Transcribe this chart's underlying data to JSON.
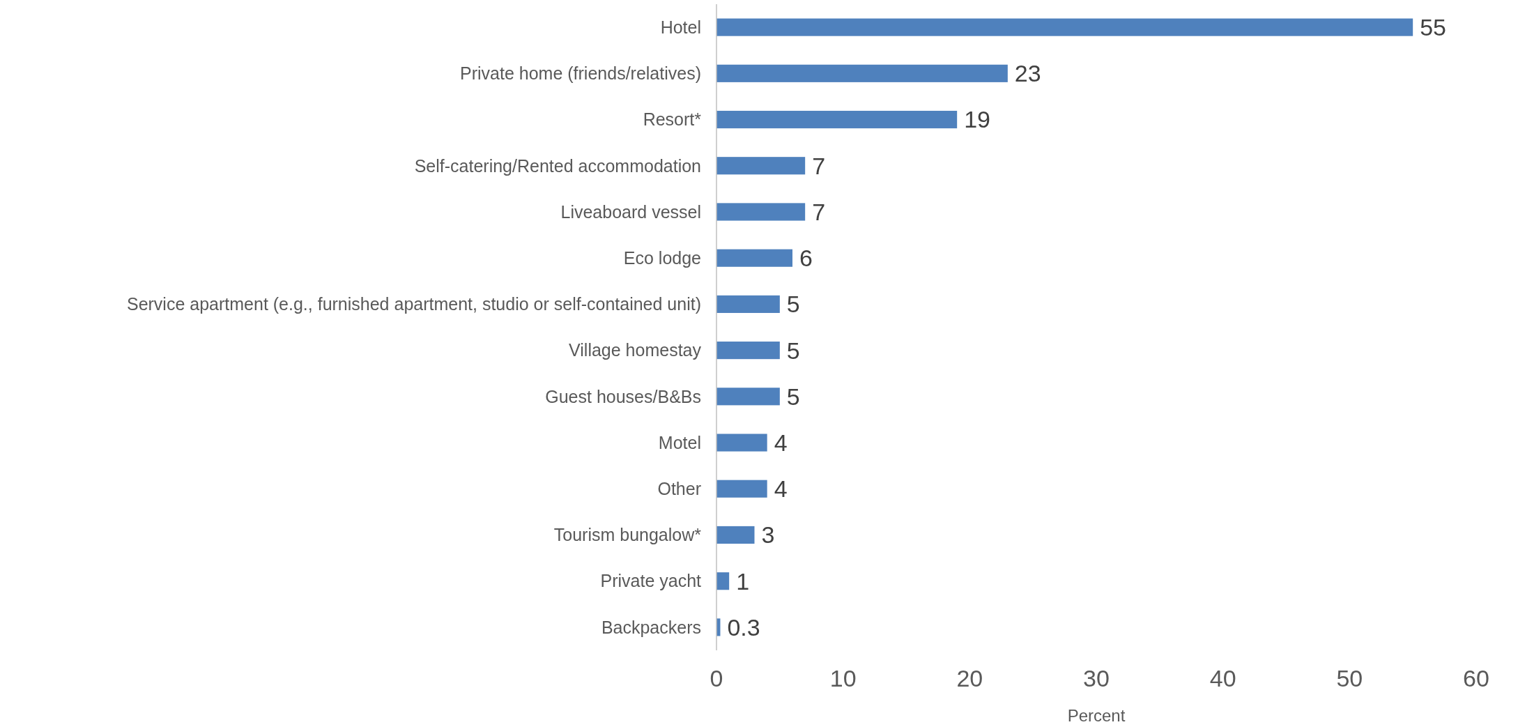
{
  "chart_data": {
    "type": "bar",
    "orientation": "horizontal",
    "xlabel": "Percent",
    "categories": [
      "Hotel",
      "Private home (friends/relatives)",
      "Resort*",
      "Self-catering/Rented accommodation",
      "Liveaboard vessel",
      "Eco lodge",
      "Service apartment (e.g., furnished apartment, studio or self-contained unit)",
      "Village homestay",
      "Guest houses/B&Bs",
      "Motel",
      "Other",
      "Tourism bungalow*",
      "Private yacht",
      "Backpackers"
    ],
    "values": [
      55,
      23,
      19,
      7,
      7,
      6,
      5,
      5,
      5,
      4,
      4,
      3,
      1,
      0.3
    ],
    "color": "#4f81bd",
    "xlim": [
      0,
      60
    ],
    "xticks": [
      0,
      10,
      20,
      30,
      40,
      50,
      60
    ],
    "data_labels": true
  }
}
